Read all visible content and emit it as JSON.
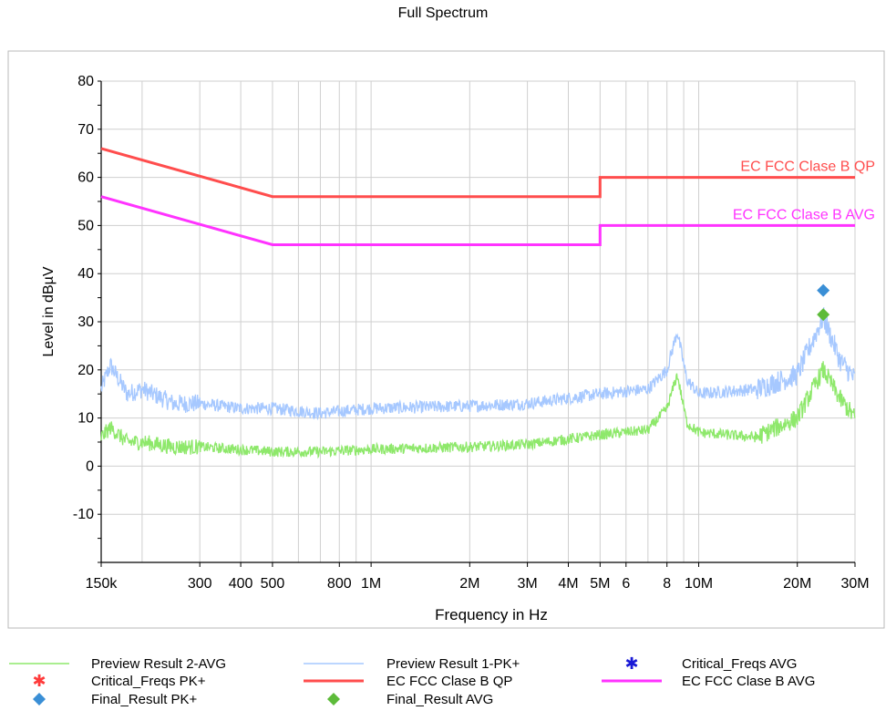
{
  "chart_data": {
    "type": "line",
    "title": "Full Spectrum",
    "xlabel": "Frequency in Hz",
    "ylabel": "Level in dBµV",
    "x_scale": "log",
    "xlim": [
      150000,
      30000000
    ],
    "ylim": [
      -20,
      80
    ],
    "grid": true,
    "y_ticks": [
      "80",
      "70",
      "60",
      "50",
      "40",
      "30",
      "20",
      "10",
      "0",
      "-10"
    ],
    "x_tick_labels": [
      {
        "label": "150k",
        "f": 150000
      },
      {
        "label": "300",
        "f": 300000
      },
      {
        "label": "400",
        "f": 400000
      },
      {
        "label": "500",
        "f": 500000
      },
      {
        "label": "800",
        "f": 800000
      },
      {
        "label": "1M",
        "f": 1000000
      },
      {
        "label": "2M",
        "f": 2000000
      },
      {
        "label": "3M",
        "f": 3000000
      },
      {
        "label": "4M",
        "f": 4000000
      },
      {
        "label": "5M",
        "f": 5000000
      },
      {
        "label": "6",
        "f": 6000000
      },
      {
        "label": "8",
        "f": 8000000
      },
      {
        "label": "10M",
        "f": 10000000
      },
      {
        "label": "20M",
        "f": 20000000
      },
      {
        "label": "30M",
        "f": 30000000
      }
    ],
    "limit_lines": [
      {
        "name": "EC FCC Clase B QP",
        "color": "#ff4d4d",
        "points": [
          [
            150000,
            66
          ],
          [
            500000,
            56
          ],
          [
            5000000,
            56
          ],
          [
            5000000,
            60
          ],
          [
            30000000,
            60
          ]
        ]
      },
      {
        "name": "EC FCC Clase B AVG",
        "color": "#ff33ff",
        "points": [
          [
            150000,
            56
          ],
          [
            500000,
            46
          ],
          [
            5000000,
            46
          ],
          [
            5000000,
            50
          ],
          [
            30000000,
            50
          ]
        ]
      }
    ],
    "series": [
      {
        "name": "Preview Result 1-PK+",
        "color": "#a6c8ff",
        "points": [
          [
            150000,
            16
          ],
          [
            160000,
            21
          ],
          [
            180000,
            15
          ],
          [
            200000,
            16
          ],
          [
            250000,
            13
          ],
          [
            300000,
            13
          ],
          [
            400000,
            12
          ],
          [
            500000,
            12
          ],
          [
            700000,
            11
          ],
          [
            1000000,
            12
          ],
          [
            2000000,
            12.5
          ],
          [
            3000000,
            13
          ],
          [
            5000000,
            15
          ],
          [
            7000000,
            16
          ],
          [
            8000000,
            20
          ],
          [
            8600000,
            28
          ],
          [
            9200000,
            18
          ],
          [
            10000000,
            15
          ],
          [
            15000000,
            16
          ],
          [
            20000000,
            19
          ],
          [
            24000000,
            31
          ],
          [
            27000000,
            22
          ],
          [
            30000000,
            18
          ]
        ]
      },
      {
        "name": "Preview Result 2-AVG",
        "color": "#8ee86b",
        "points": [
          [
            150000,
            6
          ],
          [
            160000,
            8
          ],
          [
            180000,
            5
          ],
          [
            200000,
            5
          ],
          [
            250000,
            4
          ],
          [
            300000,
            4
          ],
          [
            500000,
            3
          ],
          [
            700000,
            3
          ],
          [
            1000000,
            3.5
          ],
          [
            2000000,
            4
          ],
          [
            3000000,
            4.5
          ],
          [
            5000000,
            6.5
          ],
          [
            7000000,
            7.5
          ],
          [
            8000000,
            12
          ],
          [
            8600000,
            19
          ],
          [
            9200000,
            9
          ],
          [
            10000000,
            7
          ],
          [
            15000000,
            6
          ],
          [
            20000000,
            10
          ],
          [
            24000000,
            20
          ],
          [
            27000000,
            14
          ],
          [
            30000000,
            10
          ]
        ]
      }
    ],
    "limit_labels_order": [
      "EC FCC Clase B QP",
      "EC FCC Clase B AVG"
    ],
    "markers": [
      {
        "name": "Final_Result PK+",
        "f": 24000000,
        "level": 36.5,
        "color": "#3a8fd6",
        "shape": "diamond"
      },
      {
        "name": "Final_Result AVG",
        "f": 24000000,
        "level": 31.5,
        "color": "#5dbb3a",
        "shape": "diamond"
      }
    ]
  },
  "legend": {
    "items": [
      {
        "label": "Preview Result 2-AVG",
        "kind": "line",
        "color": "#8ee86b"
      },
      {
        "label": "Preview Result 1-PK+",
        "kind": "line",
        "color": "#a6c8ff"
      },
      {
        "label": "Critical_Freqs AVG",
        "kind": "star",
        "color": "#1a1ad6"
      },
      {
        "label": "Critical_Freqs PK+",
        "kind": "star",
        "color": "#ff3b3b"
      },
      {
        "label": "EC FCC Clase B QP",
        "kind": "line",
        "color": "#ff4d4d"
      },
      {
        "label": "EC FCC Clase B AVG",
        "kind": "line",
        "color": "#ff33ff"
      },
      {
        "label": "Final_Result PK+",
        "kind": "diamond",
        "color": "#3a8fd6"
      },
      {
        "label": "Final_Result AVG",
        "kind": "diamond",
        "color": "#5dbb3a"
      }
    ]
  }
}
